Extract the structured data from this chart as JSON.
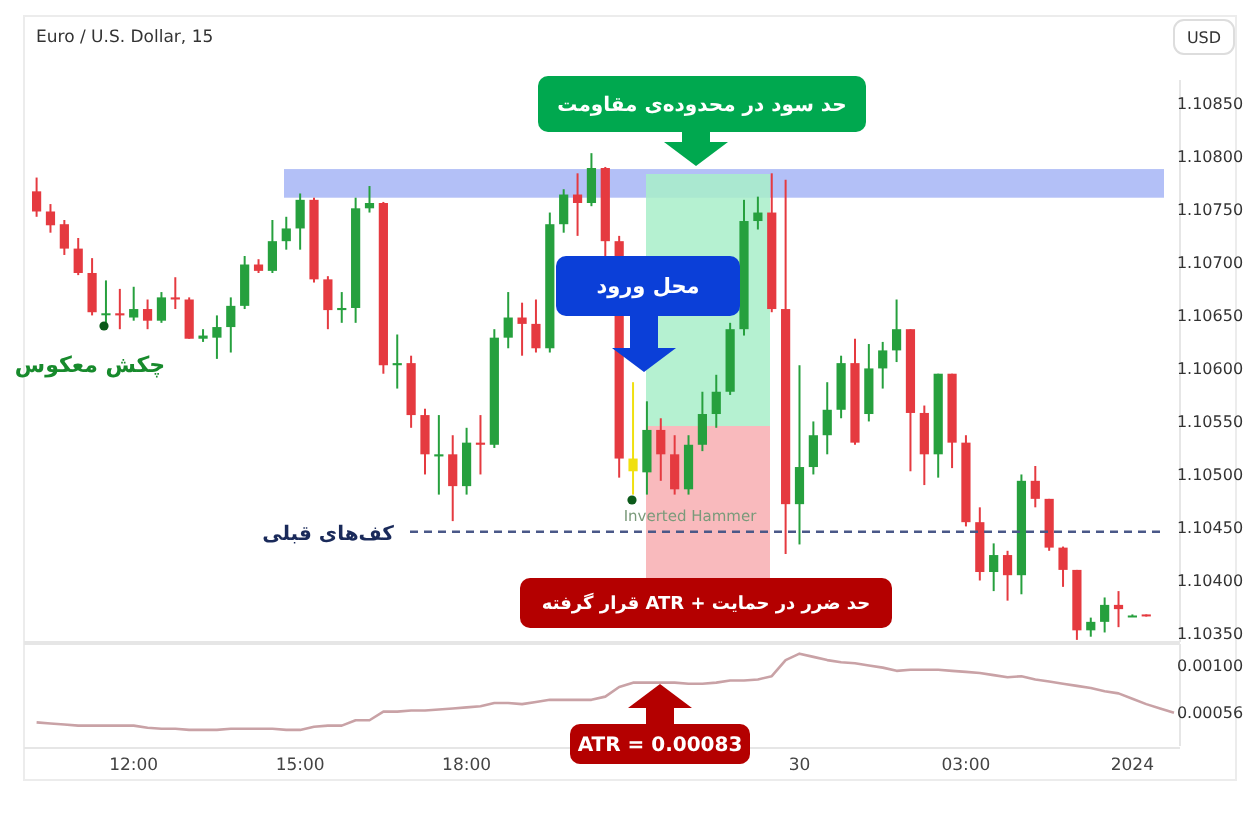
{
  "chart_data": [
    {
      "type": "candlestick",
      "title": "Euro / U.S. Dollar, 15",
      "ohlc": [
        [
          1.10767,
          1.1078,
          1.10743,
          1.10748
        ],
        [
          1.10748,
          1.10755,
          1.10728,
          1.10735
        ],
        [
          1.10736,
          1.1074,
          1.10707,
          1.10713
        ],
        [
          1.10713,
          1.10723,
          1.10688,
          1.1069
        ],
        [
          1.1069,
          1.10704,
          1.1065,
          1.10653
        ],
        [
          1.10651,
          1.10683,
          1.10643,
          1.10652
        ],
        [
          1.10652,
          1.10675,
          1.10637,
          1.1065
        ],
        [
          1.10648,
          1.10677,
          1.10645,
          1.10656
        ],
        [
          1.10656,
          1.10665,
          1.10637,
          1.10645
        ],
        [
          1.10645,
          1.10672,
          1.10643,
          1.10667
        ],
        [
          1.10667,
          1.10686,
          1.10656,
          1.10665
        ],
        [
          1.10665,
          1.10667,
          1.10628,
          1.10628
        ],
        [
          1.10628,
          1.10637,
          1.10625,
          1.10631
        ],
        [
          1.10629,
          1.1065,
          1.10609,
          1.10639
        ],
        [
          1.10639,
          1.10667,
          1.10615,
          1.10659
        ],
        [
          1.10659,
          1.10706,
          1.10656,
          1.10698
        ],
        [
          1.10698,
          1.10703,
          1.1069,
          1.10692
        ],
        [
          1.10692,
          1.1074,
          1.1069,
          1.1072
        ],
        [
          1.1072,
          1.10743,
          1.10712,
          1.10732
        ],
        [
          1.10732,
          1.10765,
          1.10712,
          1.10759
        ],
        [
          1.10759,
          1.10761,
          1.10681,
          1.10684
        ],
        [
          1.10684,
          1.10687,
          1.10637,
          1.10655
        ],
        [
          1.10655,
          1.10672,
          1.10643,
          1.10657
        ],
        [
          1.10657,
          1.10761,
          1.10643,
          1.10751
        ],
        [
          1.10751,
          1.10772,
          1.10747,
          1.10756
        ],
        [
          1.10756,
          1.10757,
          1.10595,
          1.10603
        ],
        [
          1.10603,
          1.10632,
          1.10581,
          1.10605
        ],
        [
          1.10605,
          1.10612,
          1.10544,
          1.10556
        ],
        [
          1.10556,
          1.10562,
          1.105,
          1.10519
        ],
        [
          1.10517,
          1.10556,
          1.10481,
          1.10519
        ],
        [
          1.10519,
          1.10537,
          1.10456,
          1.10489
        ],
        [
          1.10489,
          1.10544,
          1.10481,
          1.1053
        ],
        [
          1.1053,
          1.10556,
          1.105,
          1.10528
        ],
        [
          1.10528,
          1.10637,
          1.10525,
          1.10629
        ],
        [
          1.10629,
          1.10672,
          1.10619,
          1.10648
        ],
        [
          1.10648,
          1.10662,
          1.10612,
          1.10642
        ],
        [
          1.10642,
          1.10665,
          1.10615,
          1.10619
        ],
        [
          1.10619,
          1.10747,
          1.10615,
          1.10736
        ],
        [
          1.10736,
          1.10769,
          1.10728,
          1.10764
        ],
        [
          1.10764,
          1.10784,
          1.10725,
          1.10756
        ],
        [
          1.10756,
          1.10803,
          1.10753,
          1.10789
        ],
        [
          1.10789,
          1.1079,
          1.10706,
          1.1072
        ],
        [
          1.1072,
          1.10725,
          1.10497,
          1.10515
        ],
        [
          1.10503,
          1.10587,
          1.10481,
          1.10515
        ],
        [
          1.10502,
          1.10569,
          1.10481,
          1.10542
        ],
        [
          1.10542,
          1.10553,
          1.10494,
          1.10519
        ],
        [
          1.10519,
          1.10537,
          1.10481,
          1.10486
        ],
        [
          1.10486,
          1.10537,
          1.10481,
          1.10528
        ],
        [
          1.10528,
          1.10578,
          1.10522,
          1.10557
        ],
        [
          1.10557,
          1.10594,
          1.10544,
          1.10578
        ],
        [
          1.10578,
          1.10643,
          1.10575,
          1.10637
        ],
        [
          1.10637,
          1.10759,
          1.10631,
          1.10739
        ],
        [
          1.10739,
          1.10762,
          1.10731,
          1.10747
        ],
        [
          1.10747,
          1.10784,
          1.10653,
          1.10656
        ],
        [
          1.10656,
          1.10778,
          1.10425,
          1.10472
        ],
        [
          1.10472,
          1.10603,
          1.10434,
          1.10507
        ],
        [
          1.10507,
          1.1055,
          1.105,
          1.10537
        ],
        [
          1.10537,
          1.10587,
          1.10519,
          1.10561
        ],
        [
          1.10561,
          1.10612,
          1.10553,
          1.10605
        ],
        [
          1.10605,
          1.10628,
          1.10528,
          1.1053
        ],
        [
          1.10557,
          1.10623,
          1.1055,
          1.106
        ],
        [
          1.106,
          1.10625,
          1.10581,
          1.10617
        ],
        [
          1.10617,
          1.10665,
          1.10606,
          1.10637
        ],
        [
          1.10637,
          1.10637,
          1.10503,
          1.10558
        ],
        [
          1.10558,
          1.10565,
          1.1049,
          1.10519
        ],
        [
          1.10519,
          1.10595,
          1.10497,
          1.10595
        ],
        [
          1.10595,
          1.10595,
          1.10506,
          1.1053
        ],
        [
          1.1053,
          1.10537,
          1.10451,
          1.10455
        ],
        [
          1.10455,
          1.10469,
          1.104,
          1.10408
        ],
        [
          1.10408,
          1.10435,
          1.1039,
          1.10424
        ],
        [
          1.10424,
          1.10428,
          1.10381,
          1.10405
        ],
        [
          1.10405,
          1.105,
          1.10387,
          1.10494
        ],
        [
          1.10494,
          1.10508,
          1.10469,
          1.10477
        ],
        [
          1.10477,
          1.10477,
          1.10428,
          1.10431
        ],
        [
          1.10431,
          1.10432,
          1.10394,
          1.1041
        ],
        [
          1.1041,
          1.1041,
          1.10344,
          1.10353
        ],
        [
          1.10353,
          1.10365,
          1.10347,
          1.10361
        ],
        [
          1.10361,
          1.10384,
          1.10351,
          1.10377
        ],
        [
          1.10377,
          1.1039,
          1.10356,
          1.10373
        ],
        [
          1.10367,
          1.10368,
          1.10366,
          1.10367
        ],
        [
          1.10368,
          1.10368,
          1.10366,
          1.10367
        ],
        null,
        null
      ],
      "colors": [
        "#e53a40",
        "#e53a40",
        "#e53a40",
        "#e53a40",
        "#e53a40",
        "#26a03e",
        "#e53a40",
        "#26a03e",
        "#e53a40",
        "#26a03e",
        "#e53a40",
        "#e53a40",
        "#26a03e",
        "#26a03e",
        "#26a03e",
        "#26a03e",
        "#e53a40",
        "#26a03e",
        "#26a03e",
        "#26a03e",
        "#e53a40",
        "#e53a40",
        "#26a03e",
        "#26a03e",
        "#26a03e",
        "#e53a40",
        "#26a03e",
        "#e53a40",
        "#e53a40",
        "#26a03e",
        "#e53a40",
        "#26a03e",
        "#e53a40",
        "#26a03e",
        "#26a03e",
        "#e53a40",
        "#e53a40",
        "#26a03e",
        "#26a03e",
        "#e53a40",
        "#26a03e",
        "#e53a40",
        "#e53a40",
        "#f0e010",
        "#26a03e",
        "#e53a40",
        "#e53a40",
        "#26a03e",
        "#26a03e",
        "#26a03e",
        "#26a03e",
        "#26a03e",
        "#26a03e",
        "#e53a40",
        "#e53a40",
        "#26a03e",
        "#26a03e",
        "#26a03e",
        "#26a03e",
        "#e53a40",
        "#26a03e",
        "#26a03e",
        "#26a03e",
        "#e53a40",
        "#e53a40",
        "#26a03e",
        "#e53a40",
        "#e53a40",
        "#e53a40",
        "#26a03e",
        "#e53a40",
        "#26a03e",
        "#e53a40",
        "#e53a40",
        "#e53a40",
        "#e53a40",
        "#26a03e",
        "#26a03e",
        "#e53a40",
        "#26a03e",
        "#e53a40",
        null,
        null
      ],
      "bands": [
        {
          "axis": "y",
          "from": 1.10761,
          "to": 1.10788,
          "color": "#b3c0f7"
        }
      ],
      "ref_lines": [
        {
          "axis": "y",
          "value": 1.10446,
          "label": "کف‌های قبلی",
          "color": "#4a5888",
          "line_style": "dashed"
        }
      ],
      "annotations": [
        "حد سود در محدوده‌ی مقاومت",
        "محل ورود",
        "حد ضرر در حمایت + ATR قرار گرفته",
        "USD",
        "چکش معکوس",
        "Inverted Hammer"
      ],
      "ylim": [
        1.10342,
        1.10872
      ],
      "yticks": [
        {
          "value": 1.1035,
          "label": "1.10350"
        },
        {
          "value": 1.104,
          "label": "1.10400"
        },
        {
          "value": 1.1045,
          "label": "1.10450"
        },
        {
          "value": 1.105,
          "label": "1.10500"
        },
        {
          "value": 1.1055,
          "label": "1.10550"
        },
        {
          "value": 1.106,
          "label": "1.10600"
        },
        {
          "value": 1.1065,
          "label": "1.10650"
        },
        {
          "value": 1.107,
          "label": "1.10700"
        },
        {
          "value": 1.1075,
          "label": "1.10750"
        },
        {
          "value": 1.108,
          "label": "1.10800"
        },
        {
          "value": 1.1085,
          "label": "1.10850"
        }
      ],
      "tick_labels": "y"
    },
    {
      "type": "line",
      "categories": [
        null,
        null,
        null,
        null,
        null,
        null,
        null,
        "12:00",
        null,
        null,
        null,
        null,
        null,
        null,
        null,
        null,
        null,
        null,
        null,
        "15:00",
        null,
        null,
        null,
        null,
        null,
        null,
        null,
        null,
        null,
        null,
        null,
        "18:00",
        null,
        null,
        null,
        null,
        null,
        null,
        null,
        null,
        null,
        null,
        null,
        null,
        null,
        null,
        null,
        null,
        null,
        null,
        null,
        null,
        null,
        null,
        null,
        "30",
        null,
        null,
        null,
        null,
        null,
        null,
        null,
        null,
        null,
        null,
        null,
        "03:00",
        null,
        null,
        null,
        null,
        null,
        null,
        null,
        null,
        null,
        null,
        null,
        "2024",
        null,
        null,
        null
      ],
      "series": [
        {
          "color": "#c9a2a6",
          "values": [
            0.00047,
            0.00046,
            0.00045,
            0.00044,
            0.00044,
            0.00044,
            0.00044,
            0.00044,
            0.00042,
            0.00041,
            0.00041,
            0.0004,
            0.0004,
            0.0004,
            0.00041,
            0.00041,
            0.00041,
            0.00041,
            0.0004,
            0.0004,
            0.00043,
            0.00044,
            0.00044,
            0.00049,
            0.00049,
            0.00057,
            0.00057,
            0.00058,
            0.00058,
            0.00059,
            0.0006,
            0.00061,
            0.00062,
            0.00065,
            0.00065,
            0.00064,
            0.00066,
            0.00068,
            0.00068,
            0.00068,
            0.00068,
            0.00071,
            0.0008,
            0.00084,
            0.00084,
            0.00084,
            0.00084,
            0.00083,
            0.00083,
            0.00084,
            0.00086,
            0.00086,
            0.00087,
            0.0009,
            0.00105,
            0.00111,
            0.00108,
            0.00105,
            0.00103,
            0.00102,
            0.001,
            0.00098,
            0.00095,
            0.00096,
            0.00096,
            0.00096,
            0.00095,
            0.00094,
            0.00093,
            0.00091,
            0.00089,
            0.0009,
            0.00087,
            0.00085,
            0.00083,
            0.00081,
            0.00079,
            0.00076,
            0.00074,
            0.00069,
            0.00064,
            0.0006,
            0.00056
          ]
        }
      ],
      "annotations": [
        "ATR = 0.00083"
      ],
      "ylim": [
        0.00025,
        0.0012
      ],
      "yticks": [
        {
          "value": 0.001,
          "label": "0.00100"
        },
        {
          "value": 0.00056,
          "label": "0.00056"
        }
      ]
    }
  ]
}
